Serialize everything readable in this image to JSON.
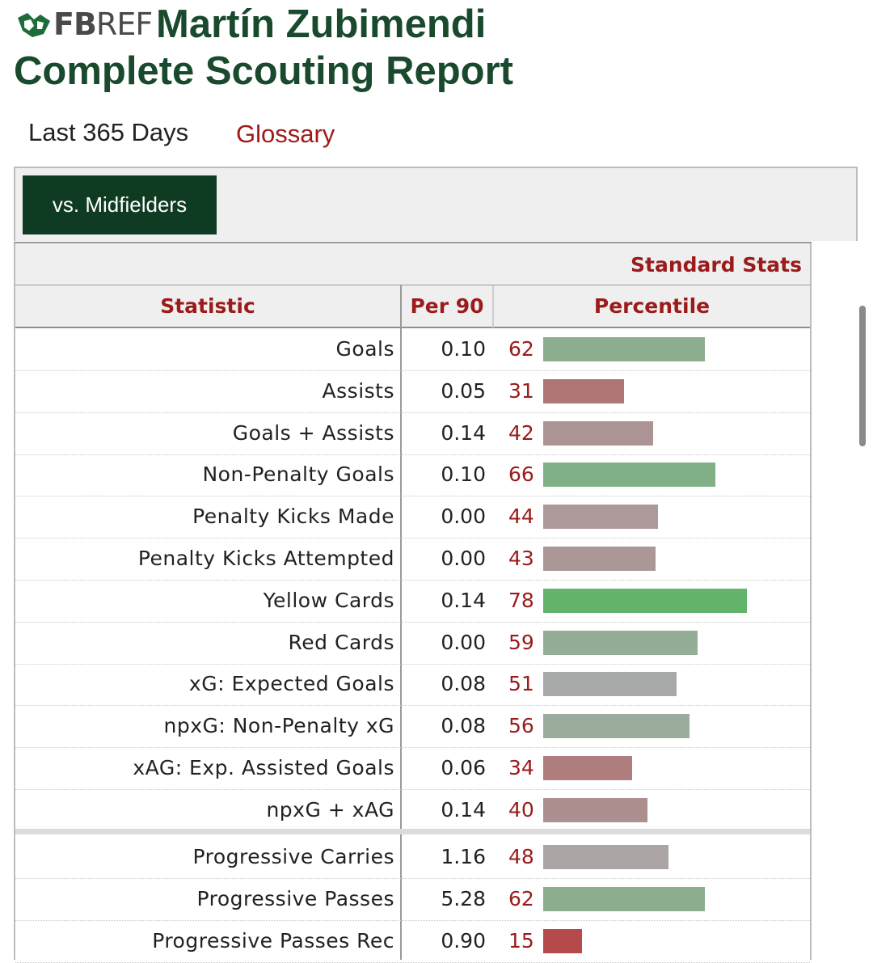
{
  "logo": {
    "bold": "FB",
    "thin": "REF"
  },
  "header": {
    "player": "Martín Zubimendi",
    "subtitle": "Complete Scouting Report",
    "period": "Last 365 Days",
    "glossary": "Glossary"
  },
  "filter": {
    "label": "vs. Midfielders"
  },
  "section": {
    "title": "Standard Stats"
  },
  "columns": {
    "statistic": "Statistic",
    "per90": "Per 90",
    "percentile": "Percentile"
  },
  "colors": {
    "brand_green": "#1a4a2e",
    "accent_red": "#9b1b1b",
    "high": "#63b36b",
    "low": "#b54a4a",
    "mid": "#aaaaaa"
  },
  "rows": [
    {
      "stat": "Goals",
      "per90": "0.10",
      "percentile": 62
    },
    {
      "stat": "Assists",
      "per90": "0.05",
      "percentile": 31
    },
    {
      "stat": "Goals + Assists",
      "per90": "0.14",
      "percentile": 42
    },
    {
      "stat": "Non-Penalty Goals",
      "per90": "0.10",
      "percentile": 66
    },
    {
      "stat": "Penalty Kicks Made",
      "per90": "0.00",
      "percentile": 44
    },
    {
      "stat": "Penalty Kicks Attempted",
      "per90": "0.00",
      "percentile": 43
    },
    {
      "stat": "Yellow Cards",
      "per90": "0.14",
      "percentile": 78
    },
    {
      "stat": "Red Cards",
      "per90": "0.00",
      "percentile": 59
    },
    {
      "stat": "xG: Expected Goals",
      "per90": "0.08",
      "percentile": 51
    },
    {
      "stat": "npxG: Non-Penalty xG",
      "per90": "0.08",
      "percentile": 56
    },
    {
      "stat": "xAG: Exp. Assisted Goals",
      "per90": "0.06",
      "percentile": 34
    },
    {
      "stat": "npxG + xAG",
      "per90": "0.14",
      "percentile": 40
    }
  ],
  "rows2": [
    {
      "stat": "Progressive Carries",
      "per90": "1.16",
      "percentile": 48
    },
    {
      "stat": "Progressive Passes",
      "per90": "5.28",
      "percentile": 62
    },
    {
      "stat": "Progressive Passes Rec",
      "per90": "0.90",
      "percentile": 15
    }
  ]
}
